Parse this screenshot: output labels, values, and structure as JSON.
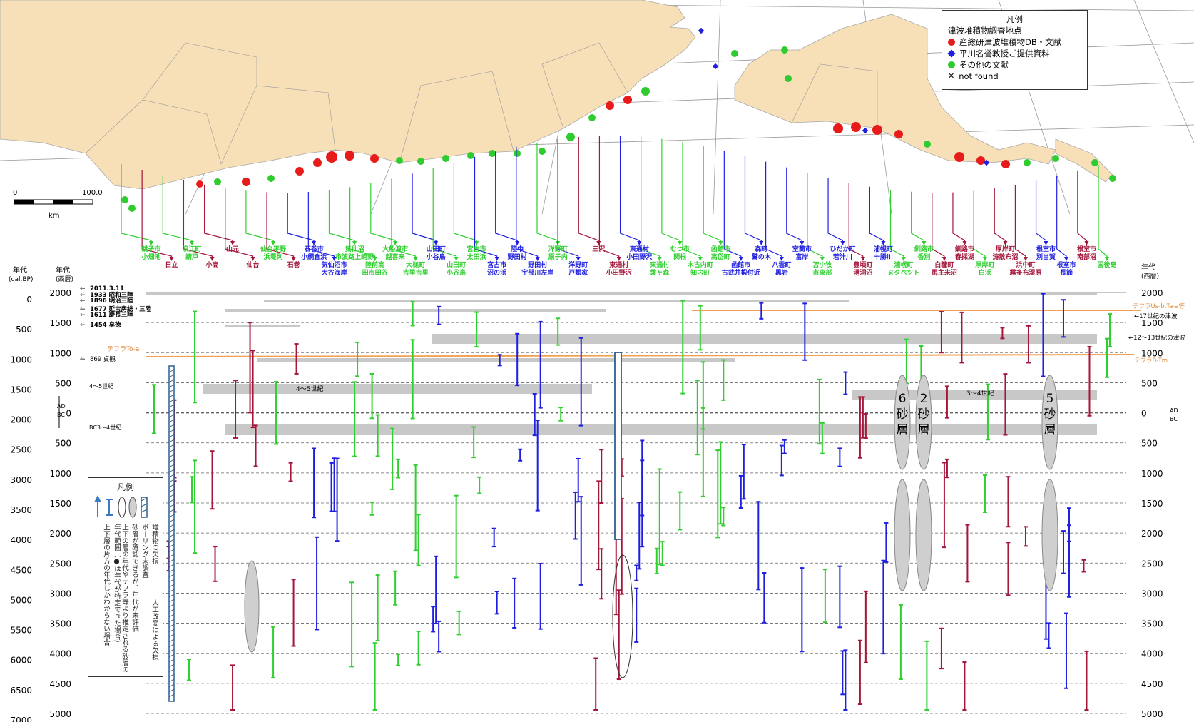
{
  "legend": {
    "title": "凡例",
    "subtitle": "津波堆積物調査地点",
    "items": [
      {
        "label": "産総研津波堆積物DB・文献",
        "color": "#e81b1b",
        "shape": "circle"
      },
      {
        "label": "平川名誉教授ご提供資料",
        "color": "#1f1fe0",
        "shape": "diamond"
      },
      {
        "label": "その他の文献",
        "color": "#2ecc2e",
        "shape": "circle"
      },
      {
        "label": "not found",
        "color": "#000000",
        "shape": "cross"
      }
    ]
  },
  "scalebar": {
    "zero": "0",
    "max": "100.0",
    "unit": "km"
  },
  "colors": {
    "aist": "#a4163a",
    "hirakawa": "#1f1fe0",
    "other": "#2fcf2f",
    "map_land": "#f7dfb8",
    "tephra": "#f0a050",
    "band": "#c8c8c8"
  },
  "sites": [
    {
      "top": "銚子市",
      "bottom": "小畑池",
      "color": "other"
    },
    {
      "top": "日立",
      "bottom": "",
      "color": "aist"
    },
    {
      "top": "浪江町",
      "bottom": "請戸",
      "color": "other"
    },
    {
      "top": "小高",
      "bottom": "",
      "color": "aist"
    },
    {
      "top": "山元",
      "bottom": "",
      "color": "aist"
    },
    {
      "top": "仙台",
      "bottom": "",
      "color": "aist"
    },
    {
      "top": "仙台平野",
      "bottom": "浜堤列",
      "color": "other"
    },
    {
      "top": "石巻",
      "bottom": "",
      "color": "aist"
    },
    {
      "top": "石巻市",
      "bottom": "小網倉浜",
      "color": "hirakawa"
    },
    {
      "top": "気仙沼市",
      "bottom": "大谷海岸",
      "color": "hirakawa"
    },
    {
      "top": "気仙沼",
      "bottom": "市波路上崎野",
      "color": "other"
    },
    {
      "top": "陸前高",
      "bottom": "田市田谷",
      "color": "other"
    },
    {
      "top": "大船渡市",
      "bottom": "越喜来",
      "color": "other"
    },
    {
      "top": "大槌町",
      "bottom": "吉里吉里",
      "color": "other"
    },
    {
      "top": "山田町",
      "bottom": "小谷鳥",
      "color": "hirakawa"
    },
    {
      "top": "山田町",
      "bottom": "小谷鳥",
      "color": "other"
    },
    {
      "top": "宮古市",
      "bottom": "太田浜",
      "color": "other"
    },
    {
      "top": "宮古市",
      "bottom": "沼の浜",
      "color": "hirakawa"
    },
    {
      "top": "陸中",
      "bottom": "野田村",
      "color": "hirakawa"
    },
    {
      "top": "野田村",
      "bottom": "宇部川左岸",
      "color": "hirakawa"
    },
    {
      "top": "洋野町",
      "bottom": "原子内",
      "color": "other"
    },
    {
      "top": "洋野町",
      "bottom": "戸類家",
      "color": "hirakawa"
    },
    {
      "top": "三沢",
      "bottom": "",
      "color": "aist"
    },
    {
      "top": "東通村",
      "bottom": "小田野沢",
      "color": "aist"
    },
    {
      "top": "東通村",
      "bottom": "小田野沢",
      "color": "hirakawa"
    },
    {
      "top": "東通村",
      "bottom": "袰ヶ森",
      "color": "other"
    },
    {
      "top": "むつ市",
      "bottom": "関根",
      "color": "other"
    },
    {
      "top": "木古内町",
      "bottom": "知内町",
      "color": "other"
    },
    {
      "top": "函館市",
      "bottom": "高岱町",
      "color": "other"
    },
    {
      "top": "函館市",
      "bottom": "古武井椴付近",
      "color": "hirakawa"
    },
    {
      "top": "森町",
      "bottom": "鷲の木",
      "color": "hirakawa"
    },
    {
      "top": "八雲町",
      "bottom": "黒岩",
      "color": "hirakawa"
    },
    {
      "top": "室蘭市",
      "bottom": "富岸",
      "color": "hirakawa"
    },
    {
      "top": "苫小牧",
      "bottom": "市東部",
      "color": "other"
    },
    {
      "top": "ひだか町",
      "bottom": "若汁川",
      "color": "hirakawa"
    },
    {
      "top": "豊頃町",
      "bottom": "湧洞沼",
      "color": "aist"
    },
    {
      "top": "浦幌町",
      "bottom": "十勝川",
      "color": "hirakawa"
    },
    {
      "top": "浦幌町",
      "bottom": "ヌタペツト",
      "color": "other"
    },
    {
      "top": "釧路市",
      "bottom": "香別",
      "color": "other"
    },
    {
      "top": "白糠町",
      "bottom": "馬主来沼",
      "color": "aist"
    },
    {
      "top": "釧路市",
      "bottom": "春採湖",
      "color": "aist"
    },
    {
      "top": "厚岸町",
      "bottom": "白浜",
      "color": "other"
    },
    {
      "top": "厚岸町",
      "bottom": "涛散布沼",
      "color": "aist"
    },
    {
      "top": "浜中町",
      "bottom": "霧多布湿原",
      "color": "aist"
    },
    {
      "top": "根室市",
      "bottom": "別当賀",
      "color": "hirakawa"
    },
    {
      "top": "根室市",
      "bottom": "長節",
      "color": "hirakawa"
    },
    {
      "top": "根室市",
      "bottom": "南部沼",
      "color": "aist"
    },
    {
      "top": "国後島",
      "bottom": "",
      "color": "other"
    }
  ],
  "axes": {
    "left_title_calbp": "年代\n(cal.BP)",
    "left_title_ad": "年代\n(西暦)",
    "right_title": "年代\n(西暦)",
    "calbp_ticks": [
      "0",
      "500",
      "1000",
      "1500",
      "2000",
      "2500",
      "3000",
      "3500",
      "4000",
      "4500",
      "5000",
      "5500",
      "6000",
      "6500",
      "7000"
    ],
    "ad_ticks_left": [
      "2000",
      "1500",
      "1000",
      "500",
      "0",
      "500",
      "1000",
      "1500",
      "2000",
      "2500",
      "3000",
      "3500",
      "4000",
      "4500",
      "5000"
    ],
    "ad_ticks_right": [
      "2000",
      "1500",
      "1000",
      "500",
      "0",
      "500",
      "1000",
      "1500",
      "2000",
      "2500",
      "3000",
      "3500",
      "4000",
      "4500",
      "5000"
    ],
    "ad_label": "AD",
    "bc_label": "BC"
  },
  "events": [
    {
      "label": "2011.3.11"
    },
    {
      "label": "1933 昭和三陸"
    },
    {
      "label": "1896 明治三陸"
    },
    {
      "label": "1677 延宝房総・三陸"
    },
    {
      "label": "1611 慶長三陸"
    },
    {
      "label": "1454 享徳"
    },
    {
      "label": "869 貞観"
    },
    {
      "label": "4～5世紀"
    },
    {
      "label": "BC3～4世紀"
    }
  ],
  "annotations": {
    "tephra_toa": "テフラTo-a",
    "tephra_usb": "テフラUs-b,Ta-a等",
    "tephra_btm": "テフラB-Tm",
    "c17": "17世紀の津波",
    "c12": "12～13世紀の津波",
    "band_45": "4～5世紀",
    "band_345": "3～4世紀",
    "sand6": "6砂層",
    "sand2": "2砂層",
    "sand5": "5砂層"
  },
  "mini_legend": {
    "title": "凡例",
    "col1": "堆積物の欠損",
    "col2": "ボーリング未調査",
    "col3": "人工改変による欠損",
    "col4": "砂層が確認できるが、年代が未評価",
    "col5": "上下の層の年代やテフラ等より推定される砂層の年代範囲（●は年代が特定できた場合）",
    "col6": "上下層の片方の年代しかわからない場合"
  }
}
